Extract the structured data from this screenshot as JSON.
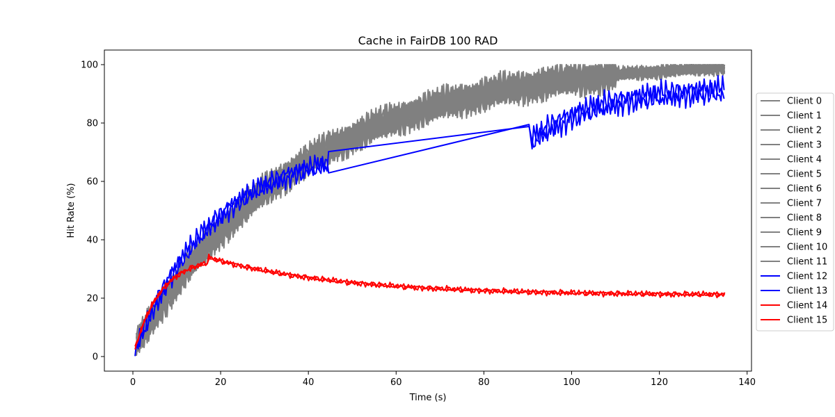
{
  "chart_data": {
    "type": "line",
    "title": "Cache in  FairDB 100 RAD",
    "xlabel": "Time (s)",
    "ylabel": "Hit Rate (%)",
    "xlim": [
      -6.5,
      141
    ],
    "ylim": [
      -5,
      105
    ],
    "xticks": [
      0,
      20,
      40,
      60,
      80,
      100,
      120,
      140
    ],
    "yticks": [
      0,
      20,
      40,
      60,
      80,
      100
    ],
    "grid": false,
    "legend_position": "right",
    "colors": {
      "gray": "#808080",
      "blue": "#0000ff",
      "red": "#ff0000"
    },
    "series": [
      {
        "name": "Client 0",
        "color": "#808080",
        "group": "gray",
        "phase": 0.0
      },
      {
        "name": "Client 1",
        "color": "#808080",
        "group": "gray",
        "phase": 0.6
      },
      {
        "name": "Client 2",
        "color": "#808080",
        "group": "gray",
        "phase": 1.2
      },
      {
        "name": "Client 3",
        "color": "#808080",
        "group": "gray",
        "phase": 1.8
      },
      {
        "name": "Client 4",
        "color": "#808080",
        "group": "gray",
        "phase": 2.4
      },
      {
        "name": "Client 5",
        "color": "#808080",
        "group": "gray",
        "phase": 3.0
      },
      {
        "name": "Client 6",
        "color": "#808080",
        "group": "gray",
        "phase": 3.6
      },
      {
        "name": "Client 7",
        "color": "#808080",
        "group": "gray",
        "phase": 4.2
      },
      {
        "name": "Client 8",
        "color": "#808080",
        "group": "gray",
        "phase": 4.8
      },
      {
        "name": "Client 9",
        "color": "#808080",
        "group": "gray",
        "phase": 5.4
      },
      {
        "name": "Client 10",
        "color": "#808080",
        "group": "gray",
        "phase": 6.0
      },
      {
        "name": "Client 11",
        "color": "#808080",
        "group": "gray",
        "phase": 6.6
      },
      {
        "name": "Client 12",
        "color": "#0000ff",
        "group": "blue",
        "phase": 0.3
      },
      {
        "name": "Client 13",
        "color": "#0000ff",
        "group": "blue",
        "phase": 2.1
      },
      {
        "name": "Client 14",
        "color": "#ff0000",
        "group": "red",
        "phase": 0.9
      },
      {
        "name": "Client 15",
        "color": "#ff0000",
        "group": "red",
        "phase": 3.3
      }
    ]
  }
}
